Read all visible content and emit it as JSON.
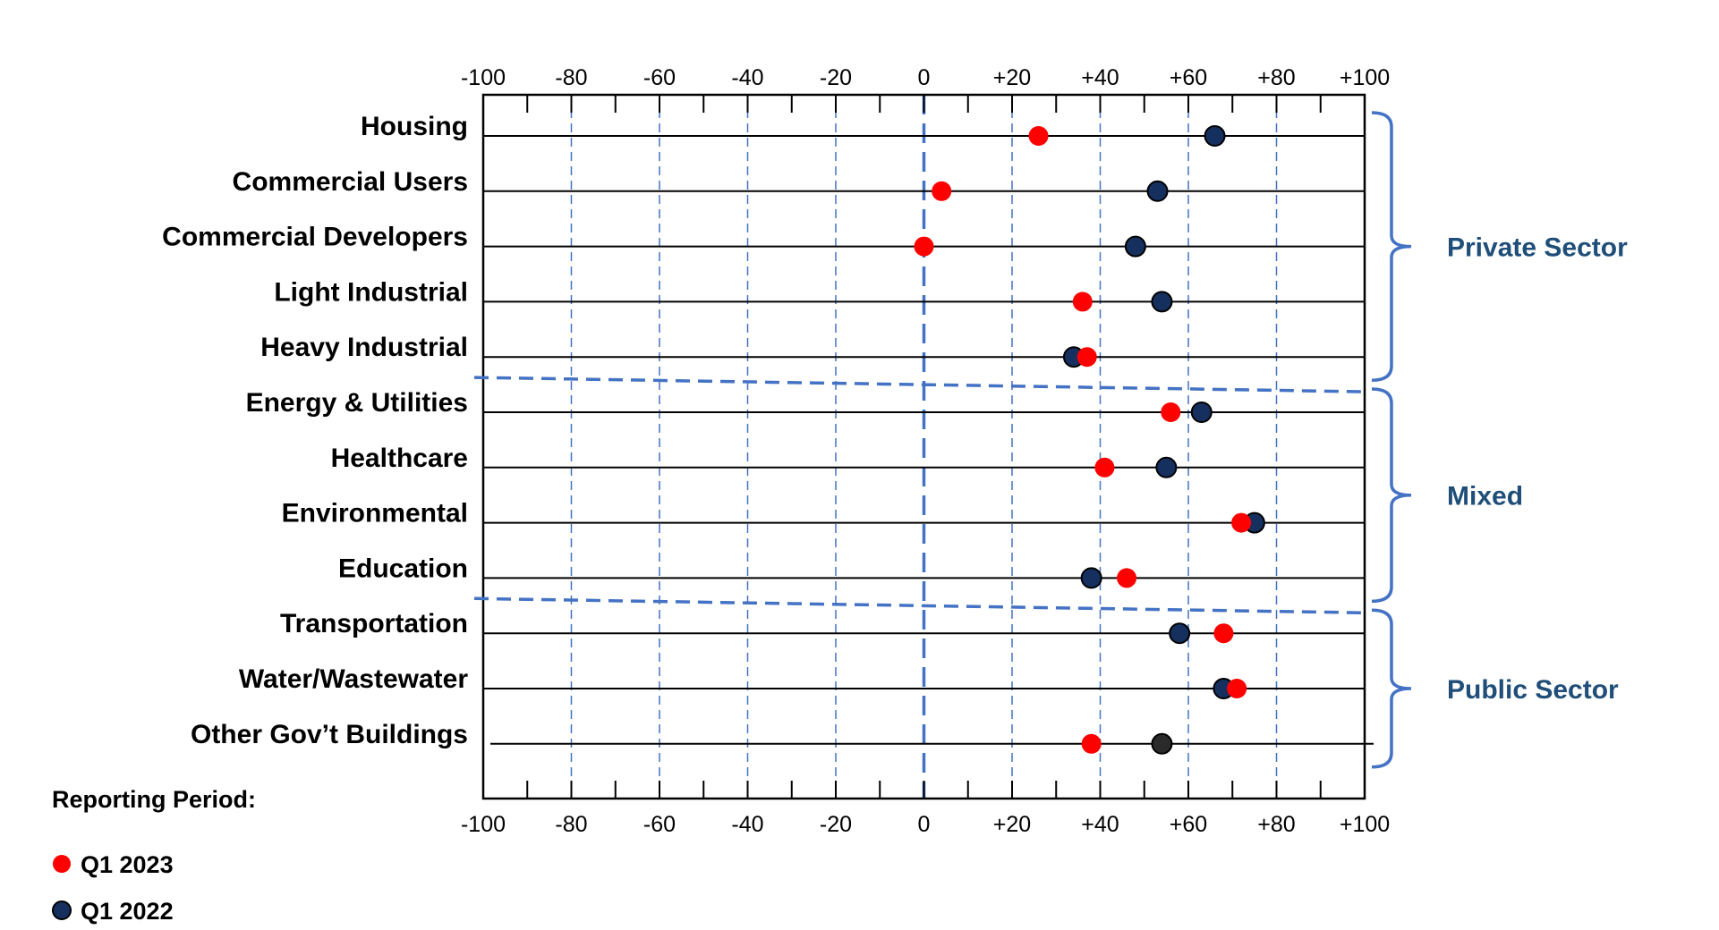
{
  "colors": {
    "q1_2023": "#ff0000",
    "q1_2022": "#15305e",
    "q1_2022_other_gov": "#2a2a2a",
    "accent": "#4472c4",
    "group_label": "#1f4e79"
  },
  "legend": {
    "title": "Reporting Period:",
    "items": [
      {
        "label": "Q1 2023",
        "color": "#ff0000"
      },
      {
        "label": "Q1 2022",
        "color": "#15305e"
      }
    ]
  },
  "groups": [
    {
      "label": "Private Sector",
      "first": 0,
      "last": 4
    },
    {
      "label": "Mixed",
      "first": 5,
      "last": 8
    },
    {
      "label": "Public Sector",
      "first": 9,
      "last": 11
    }
  ],
  "chart_data": {
    "type": "scatter",
    "subtype": "dot-plot",
    "x_ticks": [
      "-100",
      "-80",
      "-60",
      "-40",
      "-20",
      "0",
      "+20",
      "+40",
      "+60",
      "+80",
      "+100"
    ],
    "xlim": [
      -100,
      100
    ],
    "grid": "vertical dashed lines every 20",
    "legend_position": "bottom-left",
    "categories": [
      "Housing",
      "Commercial Users",
      "Commercial Developers",
      "Light Industrial",
      "Heavy Industrial",
      "Energy & Utilities",
      "Healthcare",
      "Environmental",
      "Education",
      "Transportation",
      "Water/Wastewater",
      "Other Gov’t Buildings"
    ],
    "series": [
      {
        "name": "Q1 2023",
        "color": "#ff0000",
        "values": [
          26,
          4,
          0,
          36,
          37,
          56,
          41,
          72,
          46,
          68,
          71,
          38
        ]
      },
      {
        "name": "Q1 2022",
        "color": "#15305e",
        "values": [
          66,
          53,
          48,
          54,
          34,
          63,
          55,
          75,
          38,
          58,
          68,
          54
        ]
      }
    ]
  }
}
